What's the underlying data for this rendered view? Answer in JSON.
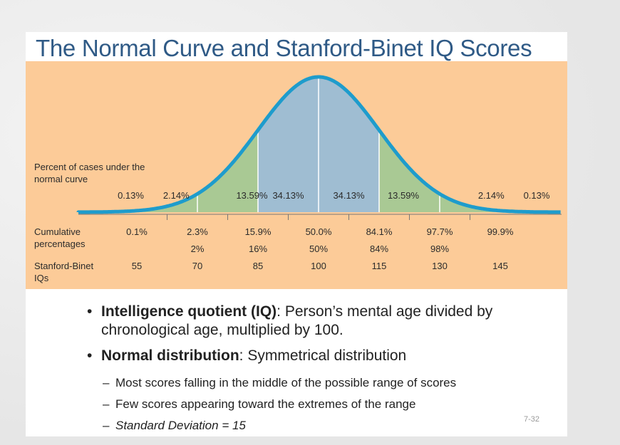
{
  "title": "The Normal Curve and Stanford-Binet IQ Scores",
  "chart_data": {
    "type": "area",
    "title": "Normal curve",
    "mean_iq": 100,
    "sd_iq": 15,
    "percent_label": [
      "Percent of cases under the",
      "normal curve"
    ],
    "segment_percents": [
      "0.13%",
      "2.14%",
      "13.59%",
      "34.13%",
      "34.13%",
      "13.59%",
      "2.14%",
      "0.13%"
    ],
    "segment_values": [
      0.13,
      2.14,
      13.59,
      34.13,
      34.13,
      13.59,
      2.14,
      0.13
    ],
    "cumulative_label": [
      "Cumulative",
      "percentages"
    ],
    "cumulative": [
      "0.1%",
      "2.3%",
      "15.9%",
      "50.0%",
      "84.1%",
      "97.7%",
      "99.9%"
    ],
    "cumulative_rounded": [
      "",
      "2%",
      "16%",
      "50%",
      "84%",
      "98%",
      ""
    ],
    "iq_label": [
      "Stanford-Binet",
      "IQs"
    ],
    "iq_scores": [
      "55",
      "70",
      "85",
      "100",
      "115",
      "130",
      "145"
    ],
    "colors": {
      "curve": "#1e9ccc",
      "center": "#9fbdd2",
      "tails": "#a9c994",
      "background": "#fccb98"
    }
  },
  "bullets": [
    {
      "bold": "Intelligence quotient (IQ)",
      "text": ": Person’s mental age divided by chronological age, multiplied by 100."
    },
    {
      "bold": "Normal distribution",
      "text": ": Symmetrical distribution"
    }
  ],
  "sub_bullets": [
    "Most scores falling in the middle of the possible range of scores",
    "Few scores appearing toward the extremes of the range",
    "Standard Deviation = 15"
  ],
  "slide_number": "7-32"
}
